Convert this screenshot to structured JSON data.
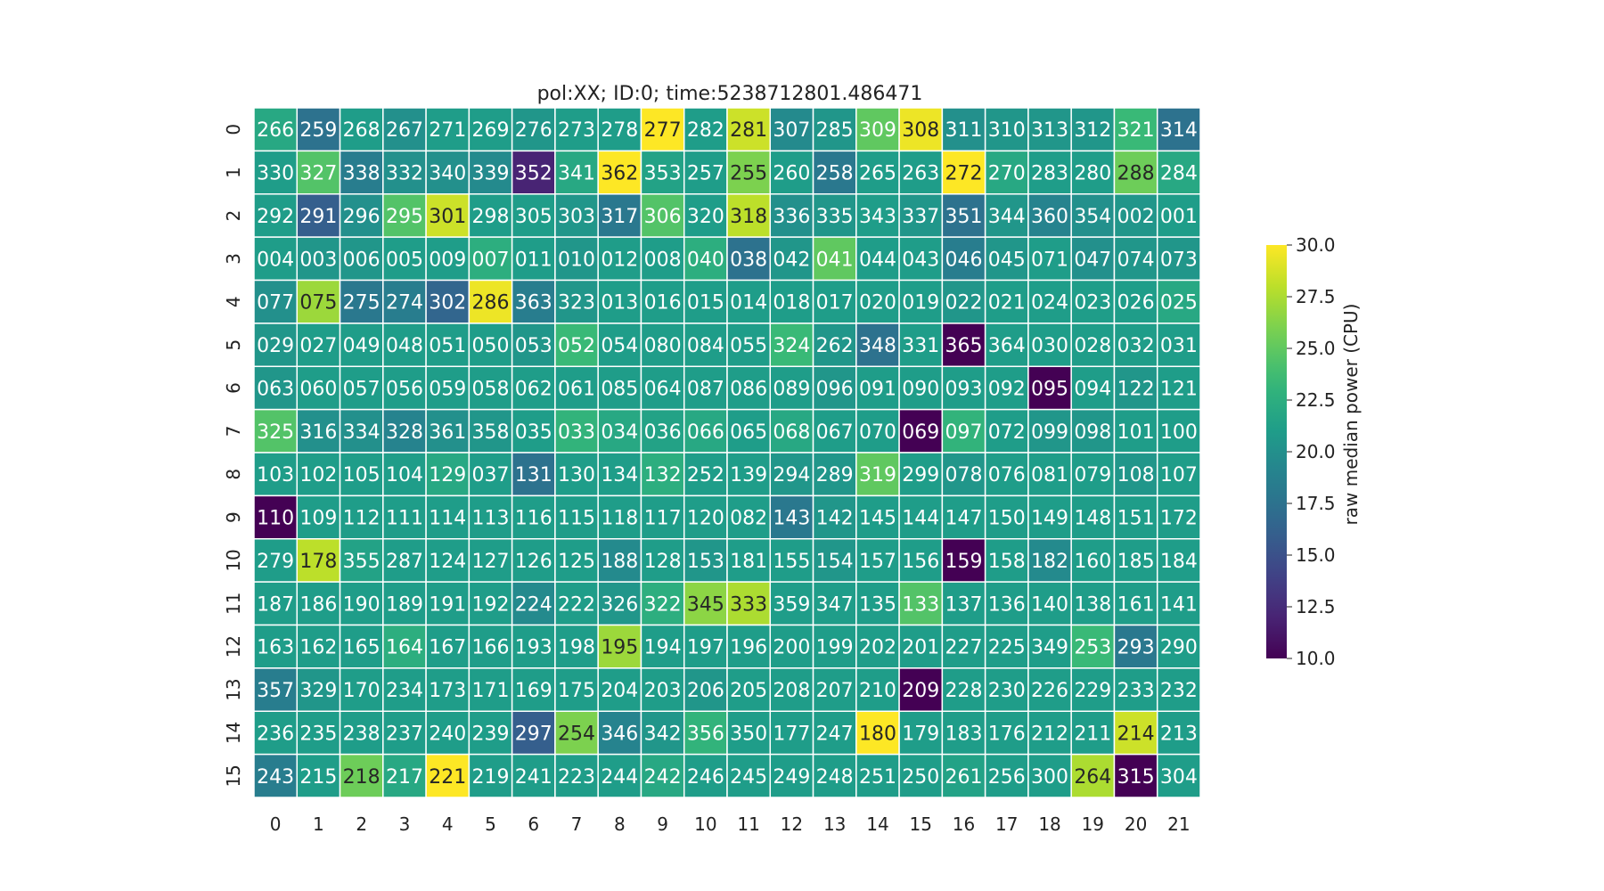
{
  "chart_data": {
    "type": "heatmap",
    "title": "pol:XX; ID:0; time:5238712801.486471",
    "xlabel": "",
    "ylabel": "",
    "x_categories": [
      "0",
      "1",
      "2",
      "3",
      "4",
      "5",
      "6",
      "7",
      "8",
      "9",
      "10",
      "11",
      "12",
      "13",
      "14",
      "15",
      "16",
      "17",
      "18",
      "19",
      "20",
      "21"
    ],
    "y_categories": [
      "0",
      "1",
      "2",
      "3",
      "4",
      "5",
      "6",
      "7",
      "8",
      "9",
      "10",
      "11",
      "12",
      "13",
      "14",
      "15"
    ],
    "annotations": [
      [
        "266",
        "259",
        "268",
        "267",
        "271",
        "269",
        "276",
        "273",
        "278",
        "277",
        "282",
        "281",
        "307",
        "285",
        "309",
        "308",
        "311",
        "310",
        "313",
        "312",
        "321",
        "314"
      ],
      [
        "330",
        "327",
        "338",
        "332",
        "340",
        "339",
        "352",
        "341",
        "362",
        "353",
        "257",
        "255",
        "260",
        "258",
        "265",
        "263",
        "272",
        "270",
        "283",
        "280",
        "288",
        "284"
      ],
      [
        "292",
        "291",
        "296",
        "295",
        "301",
        "298",
        "305",
        "303",
        "317",
        "306",
        "320",
        "318",
        "336",
        "335",
        "343",
        "337",
        "351",
        "344",
        "360",
        "354",
        "002",
        "001"
      ],
      [
        "004",
        "003",
        "006",
        "005",
        "009",
        "007",
        "011",
        "010",
        "012",
        "008",
        "040",
        "038",
        "042",
        "041",
        "044",
        "043",
        "046",
        "045",
        "071",
        "047",
        "074",
        "073"
      ],
      [
        "077",
        "075",
        "275",
        "274",
        "302",
        "286",
        "363",
        "323",
        "013",
        "016",
        "015",
        "014",
        "018",
        "017",
        "020",
        "019",
        "022",
        "021",
        "024",
        "023",
        "026",
        "025"
      ],
      [
        "029",
        "027",
        "049",
        "048",
        "051",
        "050",
        "053",
        "052",
        "054",
        "080",
        "084",
        "055",
        "324",
        "262",
        "348",
        "331",
        "365",
        "364",
        "030",
        "028",
        "032",
        "031"
      ],
      [
        "063",
        "060",
        "057",
        "056",
        "059",
        "058",
        "062",
        "061",
        "085",
        "064",
        "087",
        "086",
        "089",
        "096",
        "091",
        "090",
        "093",
        "092",
        "095",
        "094",
        "122",
        "121"
      ],
      [
        "325",
        "316",
        "334",
        "328",
        "361",
        "358",
        "035",
        "033",
        "034",
        "036",
        "066",
        "065",
        "068",
        "067",
        "070",
        "069",
        "097",
        "072",
        "099",
        "098",
        "101",
        "100"
      ],
      [
        "103",
        "102",
        "105",
        "104",
        "129",
        "037",
        "131",
        "130",
        "134",
        "132",
        "252",
        "139",
        "294",
        "289",
        "319",
        "299",
        "078",
        "076",
        "081",
        "079",
        "108",
        "107"
      ],
      [
        "110",
        "109",
        "112",
        "111",
        "114",
        "113",
        "116",
        "115",
        "118",
        "117",
        "120",
        "082",
        "143",
        "142",
        "145",
        "144",
        "147",
        "150",
        "149",
        "148",
        "151",
        "172"
      ],
      [
        "279",
        "178",
        "355",
        "287",
        "124",
        "127",
        "126",
        "125",
        "188",
        "128",
        "153",
        "181",
        "155",
        "154",
        "157",
        "156",
        "159",
        "158",
        "182",
        "160",
        "185",
        "184"
      ],
      [
        "187",
        "186",
        "190",
        "189",
        "191",
        "192",
        "224",
        "222",
        "326",
        "322",
        "345",
        "333",
        "359",
        "347",
        "135",
        "133",
        "137",
        "136",
        "140",
        "138",
        "161",
        "141"
      ],
      [
        "163",
        "162",
        "165",
        "164",
        "167",
        "166",
        "193",
        "198",
        "195",
        "194",
        "197",
        "196",
        "200",
        "199",
        "202",
        "201",
        "227",
        "225",
        "349",
        "253",
        "293",
        "290"
      ],
      [
        "357",
        "329",
        "170",
        "234",
        "173",
        "171",
        "169",
        "175",
        "204",
        "203",
        "206",
        "205",
        "208",
        "207",
        "210",
        "209",
        "228",
        "230",
        "226",
        "229",
        "233",
        "232"
      ],
      [
        "236",
        "235",
        "238",
        "237",
        "240",
        "239",
        "297",
        "254",
        "346",
        "342",
        "356",
        "350",
        "177",
        "247",
        "180",
        "179",
        "183",
        "176",
        "212",
        "211",
        "214",
        "213"
      ],
      [
        "243",
        "215",
        "218",
        "217",
        "221",
        "219",
        "241",
        "223",
        "244",
        "242",
        "246",
        "245",
        "249",
        "248",
        "251",
        "250",
        "261",
        "256",
        "300",
        "264",
        "315",
        "304"
      ]
    ],
    "values": [
      [
        22.0,
        17.5,
        21.0,
        20.0,
        21.0,
        21.0,
        20.5,
        21.0,
        21.0,
        30.0,
        21.0,
        28.5,
        19.5,
        20.5,
        25.0,
        29.5,
        20.0,
        20.5,
        20.5,
        20.5,
        23.5,
        17.5
      ],
      [
        21.0,
        24.5,
        18.5,
        20.0,
        20.0,
        19.5,
        12.0,
        22.0,
        30.0,
        21.5,
        21.0,
        26.0,
        21.0,
        18.0,
        21.0,
        21.0,
        30.0,
        22.0,
        21.0,
        21.0,
        25.5,
        22.0
      ],
      [
        21.0,
        16.0,
        20.0,
        24.5,
        28.5,
        21.0,
        21.0,
        20.5,
        18.0,
        24.5,
        21.0,
        28.0,
        20.0,
        20.5,
        21.0,
        20.5,
        17.5,
        20.5,
        19.0,
        20.0,
        20.5,
        21.0
      ],
      [
        21.0,
        20.5,
        20.5,
        21.0,
        21.0,
        22.5,
        21.0,
        20.5,
        21.0,
        21.0,
        22.5,
        17.5,
        20.5,
        25.0,
        21.0,
        21.0,
        18.5,
        20.5,
        21.0,
        20.0,
        20.5,
        20.5
      ],
      [
        20.0,
        27.0,
        18.0,
        18.5,
        16.5,
        29.5,
        18.5,
        20.5,
        21.0,
        21.0,
        21.0,
        21.0,
        21.0,
        21.0,
        21.0,
        21.0,
        20.5,
        21.0,
        21.0,
        21.0,
        21.0,
        22.0
      ],
      [
        20.5,
        21.0,
        21.0,
        21.0,
        21.0,
        21.0,
        20.5,
        23.5,
        21.0,
        21.0,
        21.0,
        21.0,
        23.5,
        20.5,
        17.5,
        21.0,
        10.0,
        21.0,
        21.0,
        21.0,
        21.0,
        21.0
      ],
      [
        20.5,
        21.0,
        21.0,
        21.0,
        21.0,
        21.0,
        21.0,
        21.0,
        21.0,
        21.0,
        21.0,
        21.0,
        21.0,
        20.5,
        21.0,
        21.0,
        21.0,
        21.0,
        10.0,
        21.0,
        20.5,
        21.0
      ],
      [
        24.5,
        20.0,
        20.0,
        19.0,
        20.0,
        20.5,
        21.0,
        23.0,
        22.0,
        21.5,
        22.0,
        21.0,
        22.0,
        21.0,
        21.0,
        10.0,
        23.0,
        21.0,
        20.5,
        20.5,
        21.0,
        21.0
      ],
      [
        21.0,
        21.0,
        21.0,
        21.0,
        22.0,
        21.0,
        17.5,
        21.0,
        21.0,
        22.5,
        21.0,
        21.0,
        20.5,
        20.5,
        25.0,
        21.0,
        20.5,
        21.0,
        21.0,
        21.0,
        20.5,
        21.0
      ],
      [
        10.0,
        21.0,
        21.0,
        21.0,
        21.0,
        21.0,
        21.0,
        21.0,
        21.0,
        21.0,
        21.0,
        21.0,
        18.0,
        20.5,
        21.0,
        21.0,
        21.0,
        21.0,
        21.0,
        21.0,
        21.0,
        21.0
      ],
      [
        21.0,
        28.0,
        21.5,
        21.0,
        21.0,
        21.0,
        21.0,
        21.0,
        19.5,
        21.0,
        20.5,
        21.0,
        21.0,
        20.5,
        21.0,
        21.0,
        10.0,
        21.0,
        19.5,
        21.0,
        21.0,
        21.0
      ],
      [
        21.0,
        21.0,
        21.0,
        21.0,
        21.0,
        21.0,
        19.5,
        21.0,
        20.5,
        22.5,
        26.5,
        27.5,
        21.0,
        21.0,
        21.0,
        24.5,
        21.0,
        21.0,
        21.0,
        21.0,
        21.0,
        21.0
      ],
      [
        21.0,
        21.0,
        21.0,
        22.5,
        21.0,
        21.0,
        21.0,
        21.0,
        27.0,
        21.0,
        21.0,
        21.0,
        21.0,
        21.0,
        21.0,
        21.0,
        21.0,
        21.0,
        21.0,
        23.5,
        18.0,
        21.0
      ],
      [
        18.5,
        20.5,
        21.0,
        21.0,
        21.0,
        21.0,
        21.0,
        21.0,
        21.0,
        21.0,
        20.5,
        21.0,
        21.0,
        21.0,
        21.0,
        10.0,
        21.0,
        21.0,
        21.0,
        21.0,
        21.0,
        21.0
      ],
      [
        21.0,
        21.0,
        21.0,
        21.0,
        21.0,
        21.0,
        16.0,
        26.0,
        19.0,
        20.5,
        23.0,
        21.0,
        21.0,
        21.0,
        30.0,
        21.0,
        21.0,
        21.0,
        21.0,
        21.0,
        28.5,
        21.0
      ],
      [
        18.5,
        21.0,
        25.5,
        22.0,
        30.0,
        21.0,
        21.0,
        21.0,
        21.0,
        22.0,
        21.0,
        21.0,
        21.0,
        21.0,
        21.0,
        21.0,
        21.5,
        21.0,
        21.0,
        27.5,
        10.0,
        21.0
      ]
    ],
    "vmin": 10.0,
    "vmax": 30.0,
    "colormap": "viridis",
    "colorbar": {
      "label": "raw median power (CPU)",
      "ticks": [
        "10.0",
        "12.5",
        "15.0",
        "17.5",
        "20.0",
        "22.5",
        "25.0",
        "27.5",
        "30.0"
      ],
      "tick_values": [
        10.0,
        12.5,
        15.0,
        17.5,
        20.0,
        22.5,
        25.0,
        27.5,
        30.0
      ]
    },
    "grid": true,
    "grid_color": "#ffffff",
    "dark_text_color": "#262626",
    "light_text_color": "#ffffff"
  }
}
